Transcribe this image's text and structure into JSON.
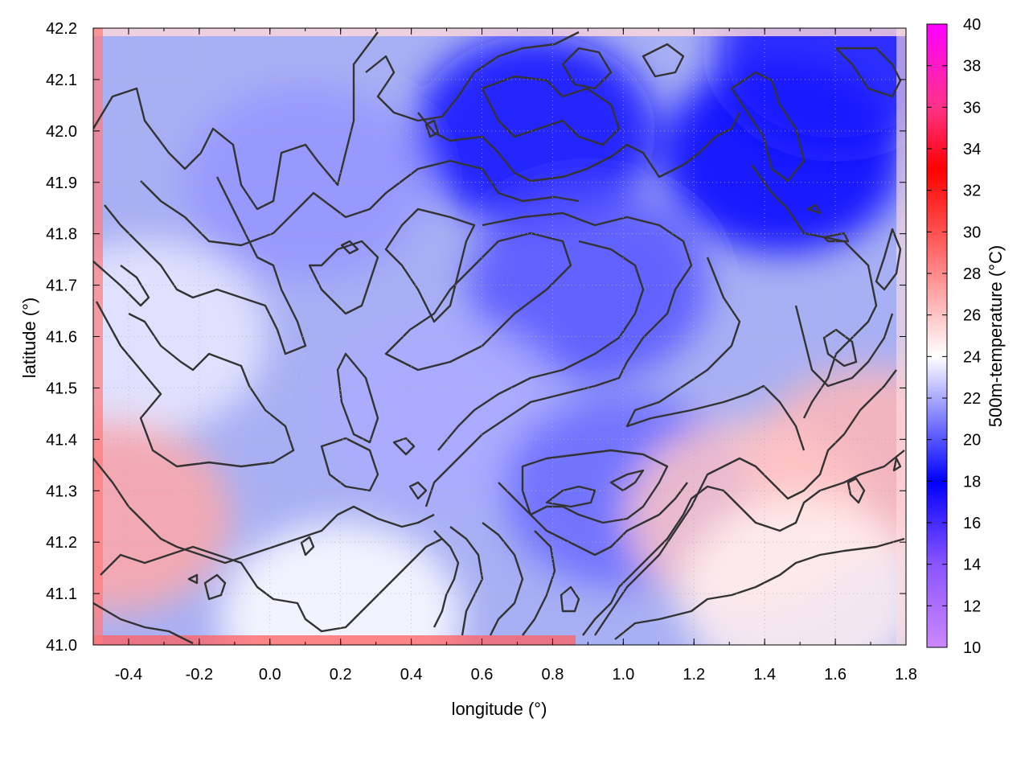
{
  "chart_data": {
    "type": "heatmap",
    "title": "",
    "xlabel": "longitude (°)",
    "ylabel": "latitude (°)",
    "colorbar_label": "500m-temperature (°C)",
    "xlim": [
      -0.5,
      1.8
    ],
    "ylim": [
      41.0,
      42.2
    ],
    "x_ticks": [
      "-0.4",
      "-0.2",
      "0.0",
      "0.2",
      "0.4",
      "0.6",
      "0.8",
      "1.0",
      "1.2",
      "1.4",
      "1.6",
      "1.8"
    ],
    "y_ticks": [
      "41.0",
      "41.1",
      "41.2",
      "41.3",
      "41.4",
      "41.5",
      "41.6",
      "41.7",
      "41.8",
      "41.9",
      "42.0",
      "42.1",
      "42.2"
    ],
    "colorbar_range": [
      10,
      40
    ],
    "colorbar_ticks": [
      "10",
      "12",
      "14",
      "16",
      "18",
      "20",
      "22",
      "24",
      "26",
      "28",
      "30",
      "32",
      "34",
      "36",
      "38",
      "40"
    ],
    "grid": true,
    "colormap": [
      {
        "value": 10,
        "color": "#cc88ff"
      },
      {
        "value": 14,
        "color": "#8a55ff"
      },
      {
        "value": 18,
        "color": "#0000ff"
      },
      {
        "value": 24,
        "color": "#ffffff"
      },
      {
        "value": 30,
        "color": "#ff5050"
      },
      {
        "value": 33,
        "color": "#ff0000"
      },
      {
        "value": 36,
        "color": "#ff3388"
      },
      {
        "value": 40,
        "color": "#ff00ff"
      }
    ],
    "contour_color": "#333333",
    "field_estimate": [
      {
        "lon": 0.75,
        "lat": 42.0,
        "temp": 17.5
      },
      {
        "lon": 1.45,
        "lat": 41.95,
        "temp": 18
      },
      {
        "lon": 1.6,
        "lat": 42.15,
        "temp": 18.5
      },
      {
        "lon": 0.1,
        "lat": 41.9,
        "temp": 21.5
      },
      {
        "lon": 0.9,
        "lat": 41.7,
        "temp": 20
      },
      {
        "lon": -0.35,
        "lat": 41.6,
        "temp": 23.5
      },
      {
        "lon": 0.5,
        "lat": 41.45,
        "temp": 22
      },
      {
        "lon": 1.0,
        "lat": 41.3,
        "temp": 20.5
      },
      {
        "lon": 1.7,
        "lat": 41.35,
        "temp": 26.5
      },
      {
        "lon": 1.35,
        "lat": 41.25,
        "temp": 26
      },
      {
        "lon": -0.45,
        "lat": 41.25,
        "temp": 27
      },
      {
        "lon": 0.2,
        "lat": 41.05,
        "temp": 24
      },
      {
        "lon": 1.5,
        "lat": 41.1,
        "temp": 24.5
      }
    ]
  }
}
